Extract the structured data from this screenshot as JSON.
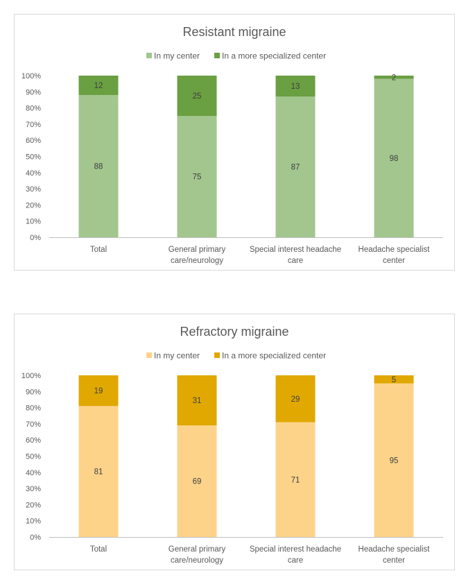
{
  "chart_data": [
    {
      "type": "bar",
      "stacked": true,
      "title": "Resistant migraine",
      "categories": [
        "Total",
        "General primary care/neurology",
        "Special interest headache care",
        "Headache specialist center"
      ],
      "category_lines": [
        [
          "Total"
        ],
        [
          "General primary",
          "care/neurology"
        ],
        [
          "Special interest headache",
          "care"
        ],
        [
          "Headache specialist",
          "center"
        ]
      ],
      "series": [
        {
          "name": "In my center",
          "values": [
            88,
            75,
            87,
            98
          ],
          "color": "#a3c68e"
        },
        {
          "name": "In a more specialized center",
          "values": [
            12,
            25,
            13,
            2
          ],
          "color": "#6a9f42"
        }
      ],
      "yticks": [
        "0%",
        "10%",
        "20%",
        "30%",
        "40%",
        "50%",
        "60%",
        "70%",
        "80%",
        "90%",
        "100%"
      ],
      "ylim": [
        0,
        100
      ],
      "legend": "top",
      "grid": false
    },
    {
      "type": "bar",
      "stacked": true,
      "title": "Refractory migraine",
      "categories": [
        "Total",
        "General primary care/neurology",
        "Special interest headache care",
        "Headache specialist center"
      ],
      "category_lines": [
        [
          "Total"
        ],
        [
          "General primary",
          "care/neurology"
        ],
        [
          "Special interest headache",
          "care"
        ],
        [
          "Headache specialist",
          "center"
        ]
      ],
      "series": [
        {
          "name": "In my center",
          "values": [
            81,
            69,
            71,
            95
          ],
          "color": "#fdd38a"
        },
        {
          "name": "In a more specialized center",
          "values": [
            19,
            31,
            29,
            5
          ],
          "color": "#e0a800"
        }
      ],
      "yticks": [
        "0%",
        "10%",
        "20%",
        "30%",
        "40%",
        "50%",
        "60%",
        "70%",
        "80%",
        "90%",
        "100%"
      ],
      "ylim": [
        0,
        100
      ],
      "legend": "top",
      "grid": false
    }
  ]
}
